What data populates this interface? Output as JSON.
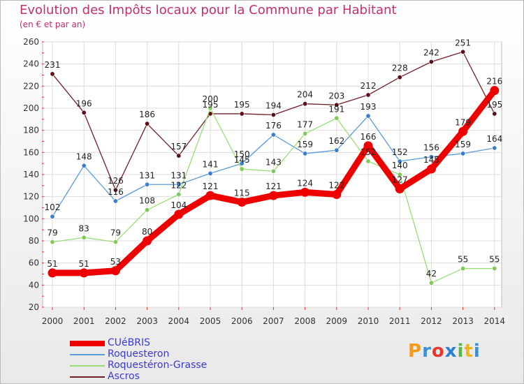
{
  "title": "Evolution des Impôts locaux pour la Commune par Habitant",
  "subtitle": "(en € et par an)",
  "logo": {
    "text": "Proxiti",
    "colors": [
      "#f39a1b",
      "#3d8fd6",
      "#e8382b",
      "#2a7fd4",
      "#57b945",
      "#f0b51b",
      "#3d8fd6"
    ]
  },
  "chart_data": {
    "type": "line",
    "title": "Evolution des Impôts locaux pour la Commune par Habitant",
    "subtitle": "(en € et par an)",
    "xlabel": "",
    "ylabel": "",
    "categories": [
      "2000",
      "2001",
      "2002",
      "2003",
      "2004",
      "2005",
      "2006",
      "2007",
      "2008",
      "2009",
      "2010",
      "2011",
      "2012",
      "2013",
      "2014"
    ],
    "ylim": [
      20,
      260
    ],
    "yticks": [
      "20",
      "40",
      "60",
      "80",
      "100",
      "120",
      "140",
      "160",
      "180",
      "200",
      "220",
      "240",
      "260"
    ],
    "grid": true,
    "series": [
      {
        "name": "Ascros",
        "color": "#6e1f27",
        "dot": "#5a1018",
        "width": 1.3,
        "values": [
          231,
          196,
          126,
          186,
          157,
          195,
          195,
          194,
          204,
          203,
          212,
          228,
          242,
          251,
          195
        ],
        "labels": [
          "231",
          "196",
          "126",
          "186",
          "157",
          "195",
          "195",
          "194",
          "204",
          "203",
          "212",
          "228",
          "242",
          "251",
          "195"
        ]
      },
      {
        "name": "Roquesteron",
        "color": "#5a9ad6",
        "dot": "#3a7fc8",
        "width": 1.3,
        "values": [
          102,
          148,
          116,
          131,
          131,
          141,
          150,
          176,
          159,
          162,
          193,
          152,
          156,
          159,
          164
        ],
        "labels": [
          "102",
          "148",
          "116",
          "131",
          "131",
          "141",
          "150",
          "176",
          "159",
          "162",
          "193",
          "152",
          "156",
          "159",
          "164"
        ]
      },
      {
        "name": "Roquestéron-Grasse",
        "color": "#99dd77",
        "dot": "#80c95a",
        "width": 1.3,
        "values": [
          79,
          83,
          79,
          108,
          122,
          200,
          145,
          143,
          177,
          191,
          152,
          140,
          42,
          55,
          55
        ],
        "labels": [
          "79",
          "83",
          "79",
          "108",
          "122",
          "200",
          "145",
          "143",
          "177",
          "191",
          "152",
          "140",
          "42",
          "55",
          "55"
        ]
      },
      {
        "name": "CUéBRIS",
        "color": "#ee0000",
        "dot": "#ee0000",
        "width": 9,
        "values": [
          51,
          51,
          53,
          80,
          104,
          121,
          115,
          121,
          124,
          122,
          166,
          127,
          145,
          179,
          216
        ],
        "labels": [
          "51",
          "51",
          "53",
          "80",
          "104",
          "121",
          "115",
          "121",
          "124",
          "122",
          "166",
          "127",
          "145",
          "179",
          "216"
        ]
      }
    ],
    "legend": [
      "CUéBRIS",
      "Roquesteron",
      "Roquestéron-Grasse",
      "Ascros"
    ]
  }
}
